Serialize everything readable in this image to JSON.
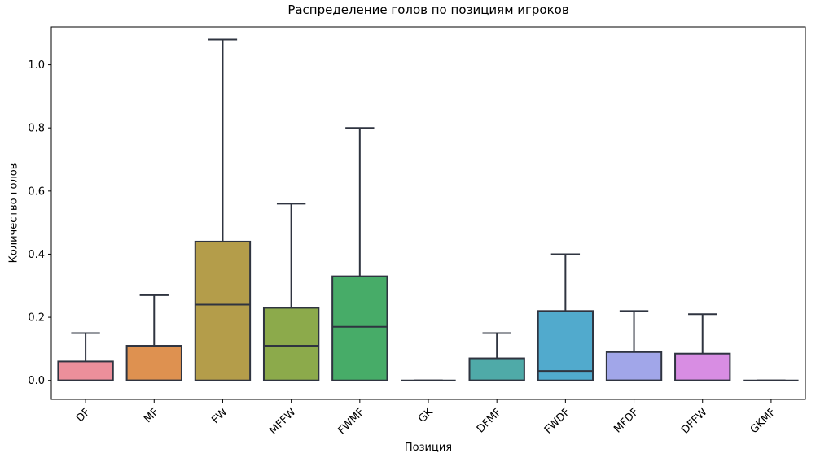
{
  "chart_data": {
    "type": "box",
    "title": "Распределение голов по позициям игроков",
    "xlabel": "Позиция",
    "ylabel": "Количество голов",
    "ylim": [
      -0.06,
      1.12
    ],
    "yticks": [
      0.0,
      0.2,
      0.4,
      0.6,
      0.8,
      1.0
    ],
    "grid": false,
    "legend": "none",
    "edge_color": "#2f3440",
    "background": "#ffffff",
    "categories": [
      "DF",
      "MF",
      "FW",
      "MFFW",
      "FWMF",
      "GK",
      "DFMF",
      "FWDF",
      "MFDF",
      "DFFW",
      "GKMF"
    ],
    "boxes": [
      {
        "label": "DF",
        "color": "#ec8f9b",
        "whisker_low": 0,
        "q1": 0,
        "median": 0,
        "q3": 0.06,
        "whisker_high": 0.15
      },
      {
        "label": "MF",
        "color": "#de9150",
        "whisker_low": 0,
        "q1": 0,
        "median": 0,
        "q3": 0.11,
        "whisker_high": 0.27
      },
      {
        "label": "FW",
        "color": "#b49d4a",
        "whisker_low": 0,
        "q1": 0,
        "median": 0.24,
        "q3": 0.44,
        "whisker_high": 1.08
      },
      {
        "label": "MFFW",
        "color": "#8caa4b",
        "whisker_low": 0,
        "q1": 0,
        "median": 0.11,
        "q3": 0.23,
        "whisker_high": 0.56
      },
      {
        "label": "FWMF",
        "color": "#47ac68",
        "whisker_low": 0,
        "q1": 0,
        "median": 0.17,
        "q3": 0.33,
        "whisker_high": 0.8
      },
      {
        "label": "GK",
        "color": "#45aca4",
        "whisker_low": 0,
        "q1": 0,
        "median": 0,
        "q3": 0,
        "whisker_high": 0
      },
      {
        "label": "DFMF",
        "color": "#4faaa8",
        "whisker_low": 0,
        "q1": 0,
        "median": 0,
        "q3": 0.07,
        "whisker_high": 0.15
      },
      {
        "label": "FWDF",
        "color": "#51aacd",
        "whisker_low": 0,
        "q1": 0,
        "median": 0.03,
        "q3": 0.22,
        "whisker_high": 0.4
      },
      {
        "label": "MFDF",
        "color": "#a1a6e9",
        "whisker_low": 0,
        "q1": 0,
        "median": 0,
        "q3": 0.09,
        "whisker_high": 0.22
      },
      {
        "label": "DFFW",
        "color": "#d88de3",
        "whisker_low": 0,
        "q1": 0,
        "median": 0,
        "q3": 0.085,
        "whisker_high": 0.21
      },
      {
        "label": "GKMF",
        "color": "#e589d1",
        "whisker_low": 0,
        "q1": 0,
        "median": 0,
        "q3": 0,
        "whisker_high": 0
      }
    ]
  }
}
